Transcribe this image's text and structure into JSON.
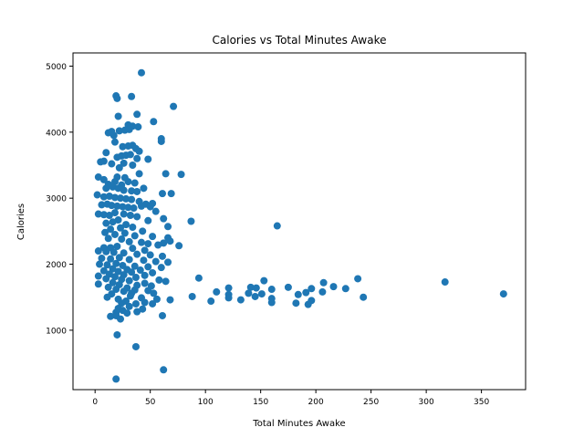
{
  "chart_data": {
    "type": "scatter",
    "title": "Calories vs Total Minutes Awake",
    "xlabel": "Total Minutes Awake",
    "ylabel": "Calories",
    "xlim": [
      -20,
      390
    ],
    "ylim": [
      100,
      5200
    ],
    "xticks": [
      0,
      50,
      100,
      150,
      200,
      250,
      300,
      350
    ],
    "yticks": [
      1000,
      2000,
      3000,
      4000,
      5000
    ],
    "grid": false,
    "marker_color": "#1f77b4",
    "points": [
      [
        42,
        4900
      ],
      [
        19,
        4550
      ],
      [
        20,
        4510
      ],
      [
        33,
        4540
      ],
      [
        71,
        4390
      ],
      [
        38,
        4270
      ],
      [
        21,
        4240
      ],
      [
        53,
        4160
      ],
      [
        30,
        4110
      ],
      [
        34,
        4090
      ],
      [
        39,
        4080
      ],
      [
        12,
        3990
      ],
      [
        15,
        4010
      ],
      [
        22,
        4020
      ],
      [
        27,
        4030
      ],
      [
        31,
        4040
      ],
      [
        17,
        3950
      ],
      [
        60,
        3900
      ],
      [
        60,
        3860
      ],
      [
        18,
        3850
      ],
      [
        25,
        3780
      ],
      [
        30,
        3790
      ],
      [
        34,
        3800
      ],
      [
        37,
        3750
      ],
      [
        40,
        3710
      ],
      [
        10,
        3690
      ],
      [
        24,
        3640
      ],
      [
        28,
        3650
      ],
      [
        32,
        3660
      ],
      [
        20,
        3620
      ],
      [
        38,
        3600
      ],
      [
        48,
        3590
      ],
      [
        5,
        3550
      ],
      [
        8,
        3560
      ],
      [
        15,
        3520
      ],
      [
        26,
        3530
      ],
      [
        34,
        3500
      ],
      [
        22,
        3460
      ],
      [
        64,
        3370
      ],
      [
        40,
        3370
      ],
      [
        78,
        3360
      ],
      [
        20,
        3320
      ],
      [
        27,
        3310
      ],
      [
        3,
        3320
      ],
      [
        30,
        3250
      ],
      [
        8,
        3280
      ],
      [
        18,
        3250
      ],
      [
        36,
        3230
      ],
      [
        12,
        3210
      ],
      [
        24,
        3200
      ],
      [
        44,
        3150
      ],
      [
        10,
        3150
      ],
      [
        16,
        3170
      ],
      [
        21,
        3150
      ],
      [
        26,
        3120
      ],
      [
        33,
        3110
      ],
      [
        38,
        3100
      ],
      [
        61,
        3070
      ],
      [
        69,
        3070
      ],
      [
        2,
        3050
      ],
      [
        8,
        3020
      ],
      [
        13,
        3030
      ],
      [
        18,
        3010
      ],
      [
        23,
        3000
      ],
      [
        28,
        2990
      ],
      [
        33,
        2980
      ],
      [
        40,
        2950
      ],
      [
        46,
        2910
      ],
      [
        52,
        2920
      ],
      [
        6,
        2900
      ],
      [
        11,
        2910
      ],
      [
        15,
        2890
      ],
      [
        20,
        2880
      ],
      [
        25,
        2870
      ],
      [
        30,
        2860
      ],
      [
        35,
        2850
      ],
      [
        42,
        2880
      ],
      [
        50,
        2870
      ],
      [
        55,
        2800
      ],
      [
        18,
        2780
      ],
      [
        3,
        2760
      ],
      [
        8,
        2750
      ],
      [
        13,
        2740
      ],
      [
        26,
        2760
      ],
      [
        32,
        2740
      ],
      [
        38,
        2720
      ],
      [
        62,
        2690
      ],
      [
        48,
        2660
      ],
      [
        87,
        2650
      ],
      [
        21,
        2670
      ],
      [
        16,
        2640
      ],
      [
        10,
        2620
      ],
      [
        28,
        2600
      ],
      [
        165,
        2580
      ],
      [
        66,
        2570
      ],
      [
        34,
        2560
      ],
      [
        23,
        2550
      ],
      [
        14,
        2530
      ],
      [
        43,
        2500
      ],
      [
        9,
        2480
      ],
      [
        27,
        2470
      ],
      [
        18,
        2450
      ],
      [
        36,
        2430
      ],
      [
        52,
        2420
      ],
      [
        66,
        2400
      ],
      [
        12,
        2390
      ],
      [
        24,
        2380
      ],
      [
        68,
        2350
      ],
      [
        31,
        2340
      ],
      [
        42,
        2330
      ],
      [
        62,
        2320
      ],
      [
        48,
        2310
      ],
      [
        57,
        2290
      ],
      [
        76,
        2280
      ],
      [
        20,
        2270
      ],
      [
        8,
        2250
      ],
      [
        14,
        2250
      ],
      [
        34,
        2240
      ],
      [
        45,
        2210
      ],
      [
        3,
        2200
      ],
      [
        10,
        2190
      ],
      [
        17,
        2180
      ],
      [
        26,
        2170
      ],
      [
        38,
        2150
      ],
      [
        50,
        2140
      ],
      [
        61,
        2120
      ],
      [
        22,
        2100
      ],
      [
        6,
        2090
      ],
      [
        14,
        2080
      ],
      [
        31,
        2070
      ],
      [
        44,
        2060
      ],
      [
        55,
        2040
      ],
      [
        66,
        2030
      ],
      [
        19,
        2010
      ],
      [
        4,
        2000
      ],
      [
        11,
        1990
      ],
      [
        25,
        1980
      ],
      [
        36,
        1970
      ],
      [
        48,
        1960
      ],
      [
        60,
        1950
      ],
      [
        16,
        1930
      ],
      [
        29,
        1920
      ],
      [
        41,
        1910
      ],
      [
        8,
        1900
      ],
      [
        21,
        1890
      ],
      [
        33,
        1880
      ],
      [
        52,
        1870
      ],
      [
        13,
        1850
      ],
      [
        26,
        1840
      ],
      [
        45,
        1830
      ],
      [
        3,
        1820
      ],
      [
        18,
        1810
      ],
      [
        37,
        1800
      ],
      [
        94,
        1790
      ],
      [
        10,
        1780
      ],
      [
        24,
        1770
      ],
      [
        58,
        1760
      ],
      [
        31,
        1750
      ],
      [
        64,
        1740
      ],
      [
        16,
        1720
      ],
      [
        45,
        1710
      ],
      [
        3,
        1700
      ],
      [
        22,
        1690
      ],
      [
        38,
        1680
      ],
      [
        51,
        1670
      ],
      [
        12,
        1650
      ],
      [
        29,
        1640
      ],
      [
        121,
        1640
      ],
      [
        141,
        1650
      ],
      [
        146,
        1640
      ],
      [
        160,
        1620
      ],
      [
        175,
        1650
      ],
      [
        19,
        1620
      ],
      [
        36,
        1610
      ],
      [
        48,
        1600
      ],
      [
        196,
        1630
      ],
      [
        206,
        1580
      ],
      [
        216,
        1660
      ],
      [
        227,
        1630
      ],
      [
        26,
        1590
      ],
      [
        153,
        1750
      ],
      [
        207,
        1720
      ],
      [
        238,
        1780
      ],
      [
        317,
        1730
      ],
      [
        370,
        1550
      ],
      [
        110,
        1580
      ],
      [
        121,
        1540
      ],
      [
        139,
        1560
      ],
      [
        151,
        1550
      ],
      [
        184,
        1540
      ],
      [
        191,
        1570
      ],
      [
        15,
        1550
      ],
      [
        33,
        1560
      ],
      [
        53,
        1560
      ],
      [
        32,
        1520
      ],
      [
        88,
        1510
      ],
      [
        121,
        1490
      ],
      [
        145,
        1510
      ],
      [
        160,
        1480
      ],
      [
        243,
        1500
      ],
      [
        11,
        1500
      ],
      [
        42,
        1490
      ],
      [
        56,
        1470
      ],
      [
        68,
        1460
      ],
      [
        105,
        1440
      ],
      [
        132,
        1460
      ],
      [
        160,
        1420
      ],
      [
        182,
        1410
      ],
      [
        196,
        1450
      ],
      [
        21,
        1470
      ],
      [
        28,
        1440
      ],
      [
        45,
        1420
      ],
      [
        193,
        1390
      ],
      [
        24,
        1410
      ],
      [
        37,
        1400
      ],
      [
        52,
        1400
      ],
      [
        31,
        1360
      ],
      [
        21,
        1330
      ],
      [
        43,
        1320
      ],
      [
        25,
        1300
      ],
      [
        38,
        1280
      ],
      [
        19,
        1270
      ],
      [
        29,
        1260
      ],
      [
        14,
        1210
      ],
      [
        19,
        1220
      ],
      [
        61,
        1220
      ],
      [
        23,
        1170
      ],
      [
        20,
        930
      ],
      [
        37,
        750
      ],
      [
        62,
        400
      ],
      [
        19,
        260
      ]
    ]
  }
}
